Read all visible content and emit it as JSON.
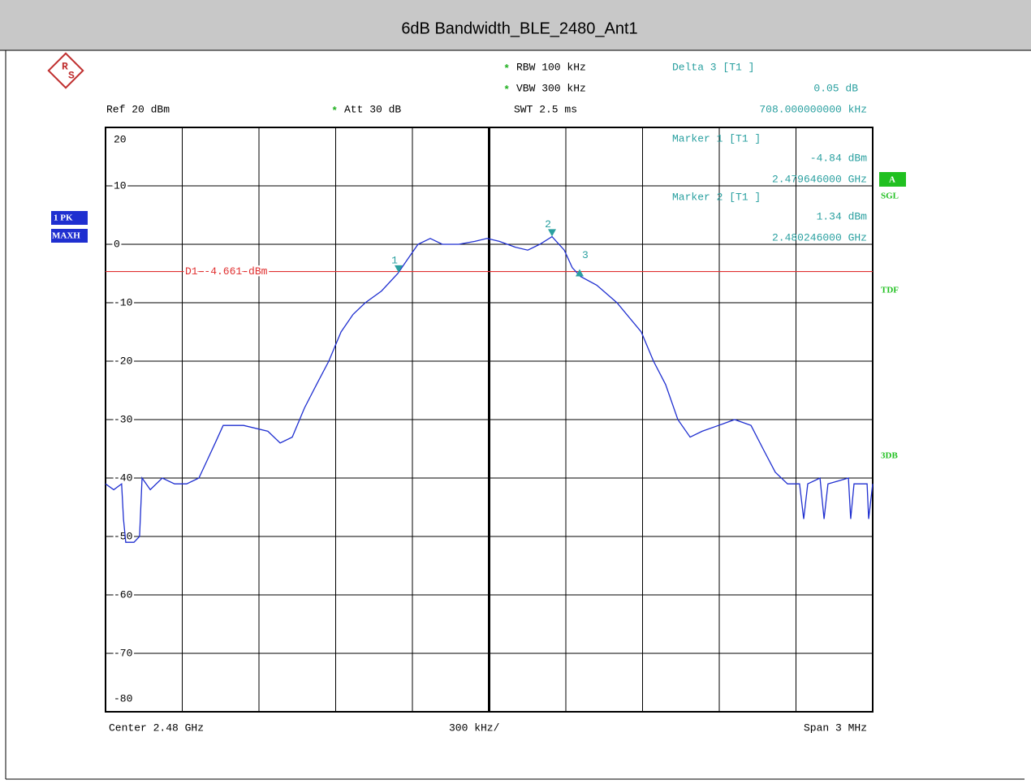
{
  "chart_data": {
    "type": "line",
    "title": "6dB Bandwidth_BLE_2480_Ant1",
    "settings": [
      {
        "text": "RBW  100 kHz",
        "mark": "*"
      },
      {
        "text": "VBW  300 kHz",
        "mark": "*"
      },
      {
        "text": "SWT  2.5 ms"
      },
      {
        "text": "Ref  20 dBm"
      },
      {
        "text": "Att   30 dB",
        "mark": "*"
      }
    ],
    "side_labels": [
      "1 PK",
      "MAXH",
      "A",
      "SGL",
      "TDF",
      "3DB"
    ],
    "footer": {
      "center": "Center  2.48 GHz",
      "per_div": "300 kHz/",
      "span": "Span  3 MHz"
    },
    "xlim": [
      2478.5,
      2481.5
    ],
    "xticks": [
      2478.5,
      2478.8,
      2479.1,
      2479.4,
      2479.7,
      2480.0,
      2480.3,
      2480.6,
      2480.9,
      2481.2,
      2481.5
    ],
    "ylim": [
      -80,
      20
    ],
    "yticks": [
      -80,
      -70,
      -60,
      -50,
      -40,
      -30,
      -20,
      -10,
      0,
      10,
      20
    ],
    "grid": true,
    "series": [
      {
        "name": "1 PK MAXH",
        "color": "#1f2fd0",
        "x": [
          2478.5,
          2478.532,
          2478.563,
          2478.57,
          2478.579,
          2478.611,
          2478.633,
          2478.643,
          2478.675,
          2478.722,
          2478.77,
          2478.817,
          2478.865,
          2478.897,
          2478.929,
          2478.96,
          2479.04,
          2479.135,
          2479.183,
          2479.23,
          2479.278,
          2479.325,
          2479.373,
          2479.421,
          2479.468,
          2479.516,
          2479.579,
          2479.643,
          2479.69,
          2479.722,
          2479.77,
          2479.817,
          2479.881,
          2479.944,
          2479.992,
          2480.04,
          2480.103,
          2480.151,
          2480.198,
          2480.246,
          2480.294,
          2480.325,
          2480.357,
          2480.421,
          2480.5,
          2480.595,
          2480.643,
          2480.69,
          2480.738,
          2480.786,
          2480.833,
          2480.897,
          2480.96,
          2481.024,
          2481.071,
          2481.119,
          2481.167,
          2481.214,
          2481.23,
          2481.246,
          2481.294,
          2481.31,
          2481.325,
          2481.405,
          2481.414,
          2481.427,
          2481.478,
          2481.484,
          2481.5
        ],
        "values": [
          -41,
          -42,
          -41,
          -47,
          -51,
          -51,
          -50,
          -40,
          -42,
          -40,
          -41,
          -41,
          -40,
          -37,
          -34,
          -31,
          -31,
          -32,
          -34,
          -33,
          -28,
          -24,
          -20,
          -15,
          -12,
          -10,
          -8,
          -5,
          -2,
          0,
          1,
          0,
          0,
          0.5,
          1,
          0.5,
          -0.5,
          -1,
          0,
          1.3,
          -1,
          -4,
          -5.5,
          -7,
          -10,
          -15,
          -20,
          -24,
          -30,
          -33,
          -32,
          -31,
          -30,
          -31,
          -35,
          -39,
          -41,
          -41,
          -47,
          -41,
          -40,
          -47,
          -41,
          -40,
          -47,
          -41,
          -41,
          -47,
          -41
        ]
      }
    ],
    "display_line": {
      "value": -4.661,
      "label": "D1 -4.661 dBm",
      "color": "#e03030"
    },
    "markers": [
      {
        "name": "Marker 1 [T1 ]",
        "label": "1",
        "x": 2479.646,
        "value": -4.84,
        "value_label": "-4.84 dBm",
        "x_label": "2.479646000 GHz"
      },
      {
        "name": "Marker 2 [T1 ]",
        "label": "2",
        "x": 2480.246,
        "value": 1.34,
        "value_label": "1.34 dBm",
        "x_label": "2.480246000 GHz"
      }
    ],
    "delta": {
      "name": "Delta 3 [T1 ]",
      "label": "3",
      "value": 0.05,
      "value_label": "0.05 dB",
      "offset": 0.708,
      "offset_label": "708.000000000 kHz"
    },
    "marker_color": "#2aa0a0"
  }
}
